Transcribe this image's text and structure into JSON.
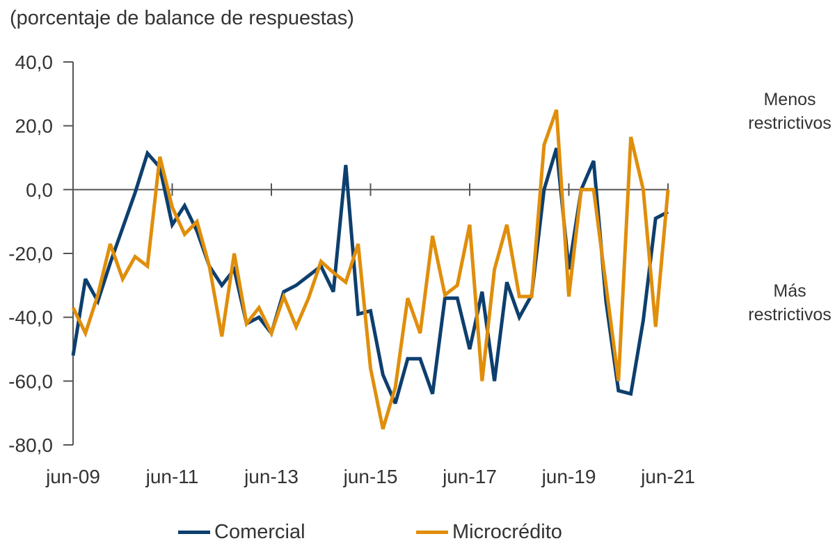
{
  "chart_data": {
    "type": "line",
    "title": "",
    "subtitle": "(porcentaje de balance de respuestas)",
    "xlabel": "",
    "ylabel": "",
    "ylim": [
      -80,
      40
    ],
    "yticks": [
      "40,0",
      "20,0",
      "0,0",
      "-20,0",
      "-40,0",
      "-60,0",
      "-80,0"
    ],
    "ytick_values": [
      40,
      20,
      0,
      -20,
      -40,
      -60,
      -80
    ],
    "xtick_labels": [
      "jun-09",
      "jun-11",
      "jun-13",
      "jun-15",
      "jun-17",
      "jun-19",
      "jun-21"
    ],
    "x": [
      "2009-06",
      "2009-09",
      "2009-12",
      "2010-03",
      "2010-06",
      "2010-09",
      "2010-12",
      "2011-03",
      "2011-06",
      "2011-09",
      "2011-12",
      "2012-03",
      "2012-06",
      "2012-09",
      "2012-12",
      "2013-03",
      "2013-06",
      "2013-09",
      "2013-12",
      "2014-03",
      "2014-06",
      "2014-09",
      "2014-12",
      "2015-03",
      "2015-06",
      "2015-09",
      "2015-12",
      "2016-03",
      "2016-06",
      "2016-09",
      "2016-12",
      "2017-03",
      "2017-06",
      "2017-09",
      "2017-12",
      "2018-03",
      "2018-06",
      "2018-09",
      "2018-12",
      "2019-03",
      "2019-06",
      "2019-09",
      "2019-12",
      "2020-03",
      "2020-06",
      "2020-09",
      "2020-12",
      "2021-03",
      "2021-06"
    ],
    "series": [
      {
        "name": "Comercial",
        "color": "#0d3f6e",
        "values": [
          -52,
          -28,
          -35,
          -23,
          -12,
          -1,
          11.4,
          7,
          -11,
          -5,
          -13,
          -24,
          -30,
          -25,
          -42,
          -40,
          -45,
          -32,
          -30,
          -27,
          -24,
          -32,
          7.7,
          -39,
          -38,
          -58,
          -67,
          -53,
          -53,
          -64,
          -34,
          -34,
          -50,
          -32,
          -60,
          -29,
          -40,
          -33,
          0,
          13,
          -25,
          0,
          9,
          -35,
          -63,
          -64,
          -41,
          -9,
          -7
        ]
      },
      {
        "name": "Microcrédito",
        "color": "#e08e0b",
        "values": [
          -37,
          -45,
          -33,
          -17,
          -28,
          -21,
          -24,
          10.3,
          -5.5,
          -14,
          -10,
          -24,
          -46,
          -20,
          -42,
          -37,
          -45,
          -33.5,
          -43,
          -34,
          -22.5,
          -26,
          -29,
          -17,
          -56,
          -75,
          -62,
          -34,
          -45,
          -14.5,
          -33,
          -30,
          -11,
          -60,
          -25,
          -11,
          -33.5,
          -33.5,
          14,
          25,
          -33.5,
          0,
          0,
          -30,
          -60,
          16.5,
          0,
          -43,
          0
        ]
      }
    ],
    "grid": false,
    "legend": "bottom",
    "annotations": {
      "top": "Menos restrictivos",
      "bottom": "Más restrictivos"
    }
  },
  "notes": {
    "top_line1": "Menos",
    "top_line2": "restrictivos",
    "bottom_line1": "Más",
    "bottom_line2": "restrictivos"
  }
}
